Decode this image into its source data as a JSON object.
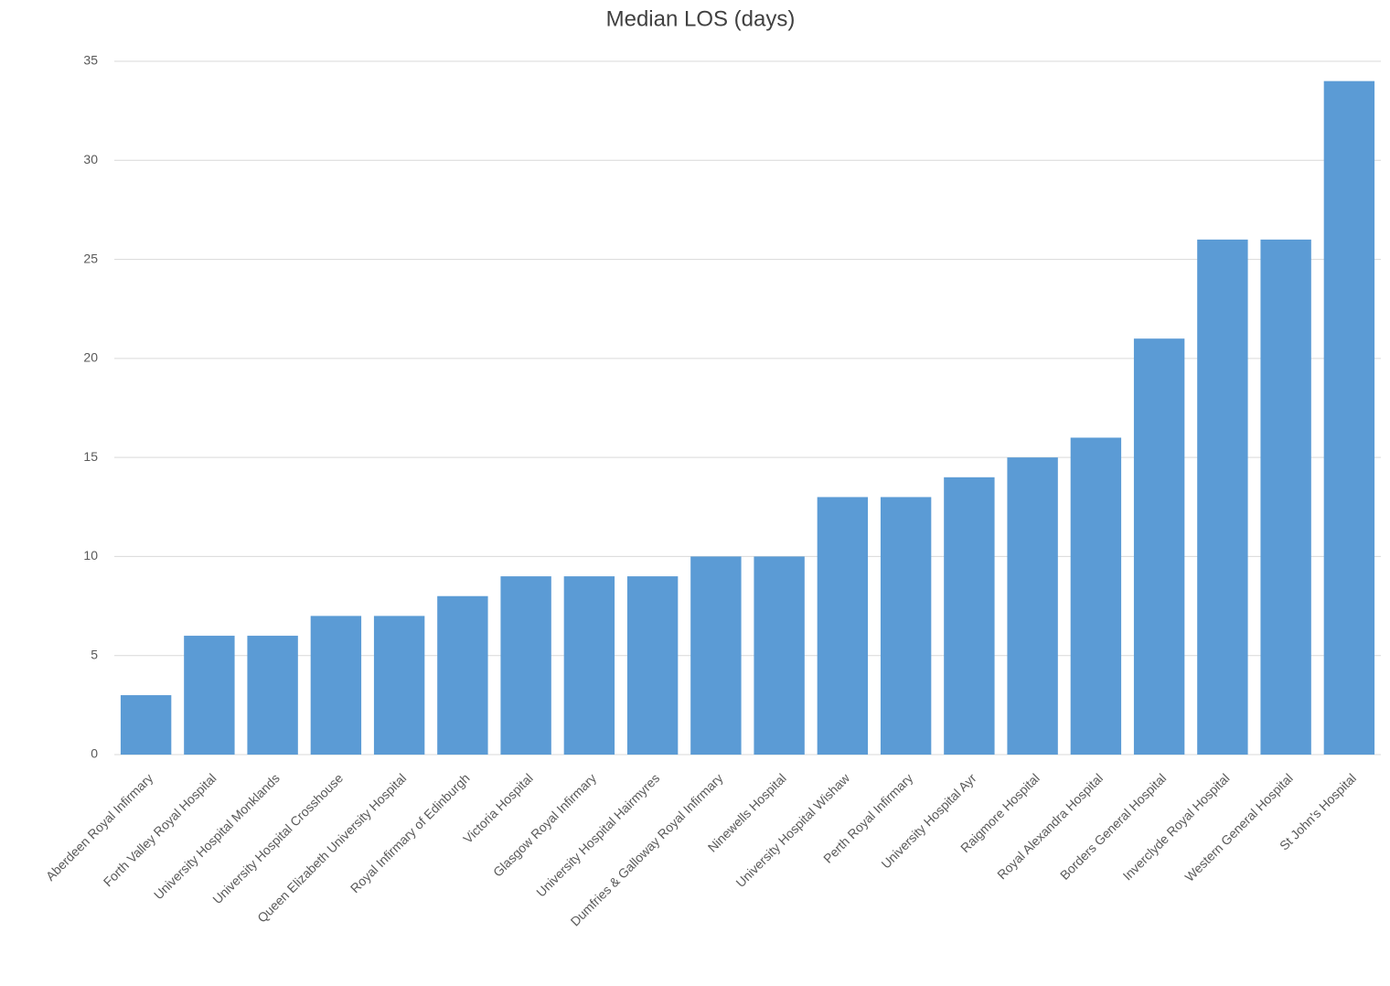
{
  "chart_data": {
    "type": "bar",
    "title": "Median LOS (days)",
    "categories": [
      "Aberdeen Royal Infirmary",
      "Forth Valley Royal Hospital",
      "University Hospital Monklands",
      "University Hospital Crosshouse",
      "Queen Elizabeth University Hospital",
      "Royal Infirmary of Edinburgh",
      "Victoria Hospital",
      "Glasgow Royal Infirmary",
      "University Hospital Hairmyres",
      "Dumfries & Galloway Royal Infirmary",
      "Ninewells Hospital",
      "University Hospital Wishaw",
      "Perth Royal Infirmary",
      "University Hospital Ayr",
      "Raigmore Hospital",
      "Royal Alexandra Hospital",
      "Borders General Hospital",
      "Inverclyde Royal Hospital",
      "Western General Hospital",
      "St John's Hospital"
    ],
    "values": [
      3,
      6,
      6,
      7,
      7,
      8,
      9,
      9,
      9,
      10,
      10,
      13,
      13,
      14,
      15,
      16,
      21,
      26,
      26,
      34
    ],
    "color": "#5b9bd5",
    "ylim": [
      0,
      35
    ],
    "yticks": [
      0,
      5,
      10,
      15,
      20,
      25,
      30,
      35
    ],
    "grid": true
  }
}
